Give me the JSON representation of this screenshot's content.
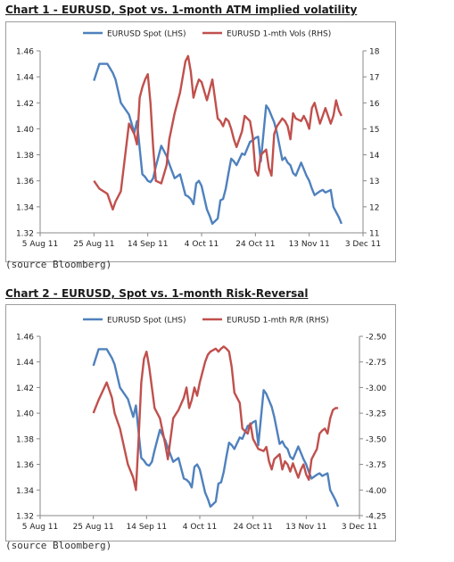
{
  "source_note": "(source Bloomberg)",
  "chart_data": [
    {
      "type": "line",
      "title": "Chart 1 - EURUSD, Spot vs. 1-month ATM implied volatility",
      "x_tick_labels": [
        "5 Aug 11",
        "25 Aug 11",
        "14 Sep 11",
        "4 Oct 11",
        "24 Oct 11",
        "13 Nov 11",
        "3 Dec 11"
      ],
      "x_ticks_day": [
        0,
        20,
        40,
        60,
        80,
        100,
        120
      ],
      "y_left": {
        "min": 1.32,
        "max": 1.46,
        "ticks": [
          "1.32",
          "1.34",
          "1.36",
          "1.38",
          "1.40",
          "1.42",
          "1.44",
          "1.46"
        ]
      },
      "y_right": {
        "min": 11,
        "max": 18,
        "ticks": [
          "11",
          "12",
          "13",
          "14",
          "15",
          "16",
          "17",
          "18"
        ]
      },
      "series": [
        {
          "name": "EURUSD Spot (LHS)",
          "axis": "left",
          "color": "#4f81bd",
          "x": [
            20,
            22,
            25,
            27,
            28,
            30,
            33,
            35,
            36,
            37,
            38,
            39,
            40,
            41,
            42,
            43,
            45,
            47,
            48,
            50,
            52,
            54,
            55,
            56,
            57,
            58,
            59,
            60,
            62,
            63,
            64,
            66,
            67,
            68,
            69,
            70,
            71,
            72,
            73,
            75,
            76,
            78,
            79,
            80,
            81,
            82,
            84,
            85,
            86,
            87,
            88,
            90,
            91,
            92,
            93,
            94,
            95,
            97,
            98,
            99,
            100,
            101,
            102,
            104,
            105,
            106,
            107,
            108,
            109,
            110,
            111,
            112
          ],
          "y": [
            1.437,
            1.45,
            1.45,
            1.443,
            1.438,
            1.42,
            1.411,
            1.397,
            1.406,
            1.385,
            1.365,
            1.363,
            1.36,
            1.359,
            1.362,
            1.371,
            1.387,
            1.379,
            1.373,
            1.362,
            1.365,
            1.349,
            1.348,
            1.346,
            1.342,
            1.358,
            1.36,
            1.356,
            1.338,
            1.333,
            1.327,
            1.331,
            1.345,
            1.346,
            1.354,
            1.366,
            1.377,
            1.375,
            1.372,
            1.381,
            1.38,
            1.39,
            1.391,
            1.393,
            1.394,
            1.375,
            1.418,
            1.415,
            1.41,
            1.405,
            1.397,
            1.376,
            1.378,
            1.374,
            1.372,
            1.366,
            1.364,
            1.374,
            1.369,
            1.364,
            1.36,
            1.354,
            1.349,
            1.352,
            1.353,
            1.351,
            1.352,
            1.353,
            1.34,
            1.336,
            1.332,
            1.327
          ]
        },
        {
          "name": "EURUSD 1-mth Vols (RHS)",
          "axis": "right",
          "color": "#c0504d",
          "x": [
            20,
            22,
            25,
            27,
            28,
            30,
            33,
            35,
            36,
            37,
            38,
            39,
            40,
            41,
            42,
            43,
            45,
            47,
            48,
            50,
            52,
            54,
            55,
            56,
            57,
            58,
            59,
            60,
            62,
            63,
            64,
            66,
            67,
            68,
            69,
            70,
            71,
            72,
            73,
            75,
            76,
            78,
            79,
            80,
            81,
            82,
            84,
            85,
            86,
            87,
            88,
            90,
            91,
            92,
            93,
            94,
            95,
            97,
            98,
            99,
            100,
            101,
            102,
            104,
            105,
            106,
            107,
            108,
            109,
            110,
            111,
            112
          ],
          "y": [
            13.0,
            12.7,
            12.5,
            11.9,
            12.2,
            12.6,
            15.2,
            14.8,
            14.4,
            16.2,
            16.6,
            16.9,
            17.1,
            16.0,
            14.3,
            13.0,
            12.9,
            13.6,
            14.6,
            15.6,
            16.4,
            17.6,
            17.8,
            17.2,
            16.2,
            16.6,
            16.9,
            16.8,
            16.1,
            16.5,
            16.9,
            15.4,
            15.3,
            15.1,
            15.4,
            15.3,
            15.0,
            14.6,
            14.3,
            14.9,
            15.5,
            15.3,
            14.7,
            13.4,
            13.2,
            14.0,
            14.2,
            13.5,
            13.2,
            14.8,
            15.1,
            15.4,
            15.3,
            15.1,
            14.6,
            15.6,
            15.4,
            15.3,
            15.5,
            15.3,
            15.0,
            15.8,
            16.0,
            15.2,
            15.5,
            15.8,
            15.5,
            15.2,
            15.5,
            16.1,
            15.7,
            15.5
          ]
        }
      ]
    },
    {
      "type": "line",
      "title": "Chart 2 - EURUSD, Spot vs. 1-month Risk-Reversal",
      "x_tick_labels": [
        "5 Aug 11",
        "25 Aug 11",
        "14 Sep 11",
        "4 Oct 11",
        "24 Oct 11",
        "13 Nov 11",
        "3 Dec 11"
      ],
      "x_ticks_day": [
        0,
        20,
        40,
        60,
        80,
        100,
        120
      ],
      "y_left": {
        "min": 1.32,
        "max": 1.46,
        "ticks": [
          "1.32",
          "1.34",
          "1.36",
          "1.38",
          "1.40",
          "1.42",
          "1.44",
          "1.46"
        ]
      },
      "y_right": {
        "min": -4.25,
        "max": -2.5,
        "ticks": [
          "-4.25",
          "-4.00",
          "-3.75",
          "-3.50",
          "-3.25",
          "-3.00",
          "-2.75",
          "-2.50"
        ]
      },
      "series": [
        {
          "name": "EURUSD Spot (LHS)",
          "axis": "left",
          "color": "#4f81bd",
          "x": [
            20,
            22,
            25,
            27,
            28,
            30,
            33,
            35,
            36,
            37,
            38,
            39,
            40,
            41,
            42,
            43,
            45,
            47,
            48,
            50,
            52,
            54,
            55,
            56,
            57,
            58,
            59,
            60,
            62,
            63,
            64,
            66,
            67,
            68,
            69,
            70,
            71,
            72,
            73,
            75,
            76,
            78,
            79,
            80,
            81,
            82,
            84,
            85,
            86,
            87,
            88,
            90,
            91,
            92,
            93,
            94,
            95,
            97,
            98,
            99,
            100,
            101,
            102,
            104,
            105,
            106,
            107,
            108,
            109,
            110,
            111,
            112
          ],
          "y": [
            1.437,
            1.45,
            1.45,
            1.443,
            1.438,
            1.42,
            1.411,
            1.397,
            1.406,
            1.385,
            1.365,
            1.363,
            1.36,
            1.359,
            1.362,
            1.371,
            1.387,
            1.379,
            1.373,
            1.362,
            1.365,
            1.349,
            1.348,
            1.346,
            1.342,
            1.358,
            1.36,
            1.356,
            1.338,
            1.333,
            1.327,
            1.331,
            1.345,
            1.346,
            1.354,
            1.366,
            1.377,
            1.375,
            1.372,
            1.381,
            1.38,
            1.39,
            1.391,
            1.393,
            1.394,
            1.375,
            1.418,
            1.415,
            1.41,
            1.405,
            1.397,
            1.376,
            1.378,
            1.374,
            1.372,
            1.366,
            1.364,
            1.374,
            1.369,
            1.364,
            1.36,
            1.354,
            1.349,
            1.352,
            1.353,
            1.351,
            1.352,
            1.353,
            1.34,
            1.336,
            1.332,
            1.327
          ]
        },
        {
          "name": "EURUSD 1-mth R/R (RHS)",
          "axis": "right",
          "color": "#c0504d",
          "x": [
            20,
            22,
            25,
            27,
            28,
            30,
            33,
            35,
            36,
            37,
            38,
            39,
            40,
            41,
            42,
            43,
            45,
            47,
            48,
            50,
            52,
            54,
            55,
            56,
            57,
            58,
            59,
            60,
            62,
            63,
            64,
            66,
            67,
            68,
            69,
            70,
            71,
            72,
            73,
            75,
            76,
            78,
            79,
            80,
            81,
            82,
            84,
            85,
            86,
            87,
            88,
            90,
            91,
            92,
            93,
            94,
            95,
            97,
            98,
            99,
            100,
            101,
            102,
            104,
            105,
            106,
            107,
            108,
            109,
            110,
            111,
            112
          ],
          "y": [
            -3.25,
            -3.12,
            -2.95,
            -3.1,
            -3.25,
            -3.4,
            -3.75,
            -3.88,
            -4.0,
            -3.5,
            -2.95,
            -2.72,
            -2.65,
            -2.8,
            -3.0,
            -3.2,
            -3.3,
            -3.55,
            -3.7,
            -3.3,
            -3.22,
            -3.1,
            -3.0,
            -3.2,
            -3.12,
            -3.0,
            -3.08,
            -2.95,
            -2.75,
            -2.68,
            -2.65,
            -2.62,
            -2.65,
            -2.62,
            -2.6,
            -2.62,
            -2.65,
            -2.8,
            -3.05,
            -3.15,
            -3.4,
            -3.45,
            -3.35,
            -3.5,
            -3.55,
            -3.6,
            -3.62,
            -3.58,
            -3.72,
            -3.8,
            -3.7,
            -3.65,
            -3.8,
            -3.72,
            -3.75,
            -3.82,
            -3.74,
            -3.88,
            -3.8,
            -3.75,
            -3.85,
            -3.9,
            -3.7,
            -3.6,
            -3.45,
            -3.42,
            -3.4,
            -3.45,
            -3.3,
            -3.22,
            -3.2,
            -3.2
          ]
        }
      ]
    }
  ]
}
